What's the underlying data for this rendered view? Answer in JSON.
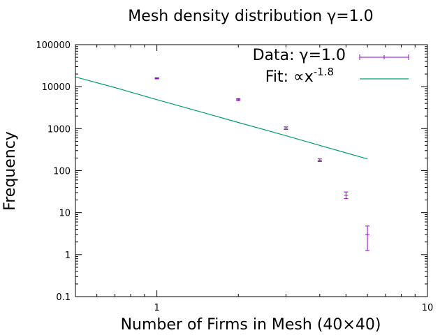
{
  "chart_data": {
    "type": "scatter",
    "title": "Mesh density distribution  γ=1.0",
    "xlabel": "Number of Firms in Mesh (40×40)",
    "ylabel": "Frequency",
    "x_scale": "log",
    "y_scale": "log",
    "xlim": [
      0.5,
      10
    ],
    "ylim": [
      0.1,
      100000
    ],
    "x_ticks": [
      {
        "value": 1,
        "label": "1"
      },
      {
        "value": 10,
        "label": "10"
      }
    ],
    "y_ticks": [
      {
        "value": 0.1,
        "label": "0.1"
      },
      {
        "value": 1,
        "label": "1"
      },
      {
        "value": 10,
        "label": "10"
      },
      {
        "value": 100,
        "label": "100"
      },
      {
        "value": 1000,
        "label": "1000"
      },
      {
        "value": 10000,
        "label": "10000"
      },
      {
        "value": 100000,
        "label": "100000"
      }
    ],
    "grid": false,
    "legend_position": "top-right",
    "series": [
      {
        "name": "Data: γ=1.0",
        "legend_label": "Data: γ=1.0",
        "kind": "errorbars",
        "color": "#9400d3",
        "points": [
          {
            "x": 1,
            "y": 15800,
            "ylow": 15300,
            "yhigh": 16300
          },
          {
            "x": 2,
            "y": 4900,
            "ylow": 4650,
            "yhigh": 5150
          },
          {
            "x": 3,
            "y": 1030,
            "ylow": 960,
            "yhigh": 1100
          },
          {
            "x": 4,
            "y": 177,
            "ylow": 165,
            "yhigh": 190
          },
          {
            "x": 5,
            "y": 26,
            "ylow": 21.5,
            "yhigh": 31
          },
          {
            "x": 6,
            "y": 3,
            "ylow": 1.25,
            "yhigh": 4.8
          }
        ]
      },
      {
        "name": "Fit: ∝x-1.8",
        "legend_label": "Fit: ∝x",
        "legend_exponent": "-1.8",
        "kind": "line",
        "color": "#009e73",
        "x": [
          0.5,
          0.7,
          1,
          1.5,
          2,
          3,
          4,
          5,
          6
        ],
        "y": [
          17000,
          9500,
          4900,
          2370,
          1400,
          680,
          400,
          265,
          190
        ]
      }
    ]
  }
}
